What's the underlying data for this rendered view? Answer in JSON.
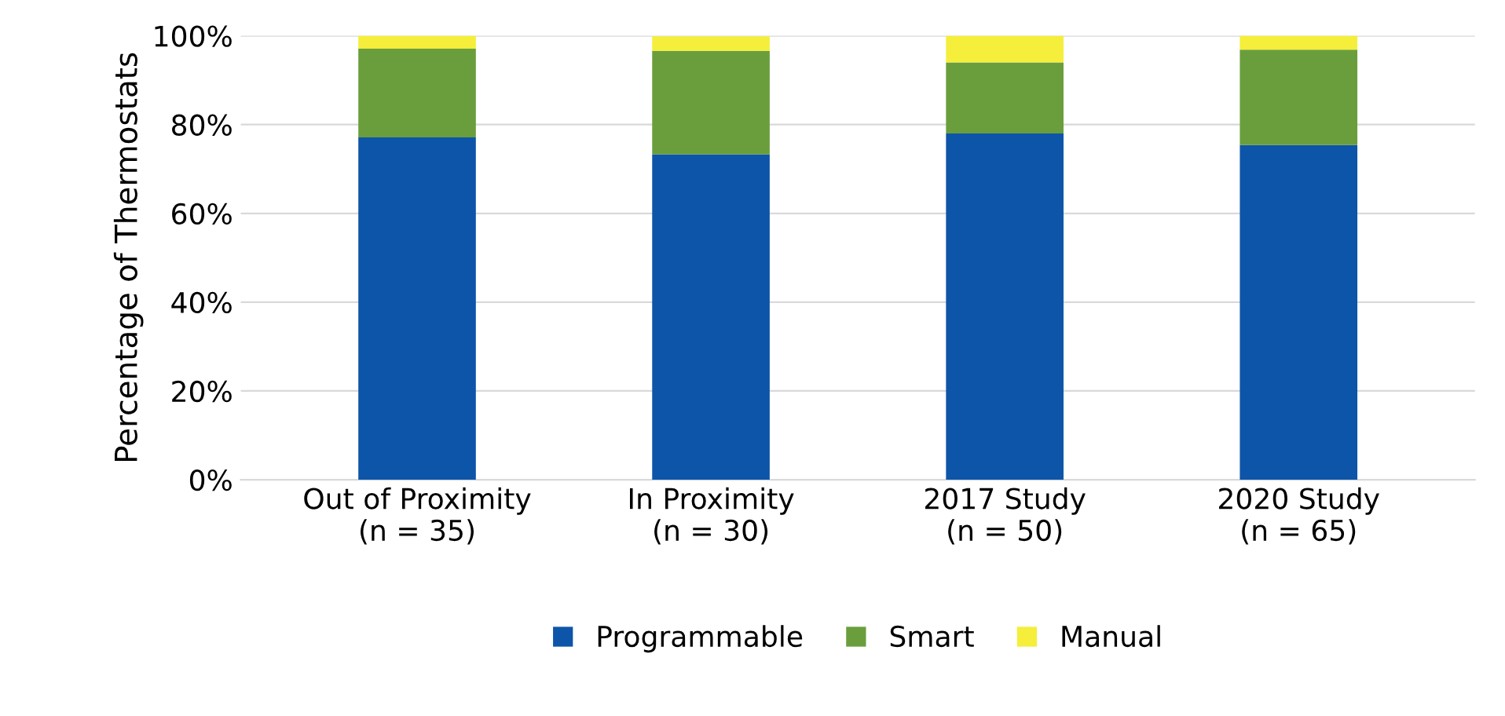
{
  "chart_data": {
    "type": "bar",
    "stacked": true,
    "ylabel": "Percentage of Thermostats",
    "categories": [
      "Out of Proximity\n(n = 35)",
      "In Proximity\n(n = 30)",
      "2017 Study\n(n = 50)",
      "2020 Study\n(n = 65)"
    ],
    "series": [
      {
        "name": "Programmable",
        "color": "#0d55a8",
        "values": [
          77.1,
          73.3,
          78,
          75.4
        ]
      },
      {
        "name": "Smart",
        "color": "#6a9e3c",
        "values": [
          20,
          23.3,
          16,
          21.5
        ]
      },
      {
        "name": "Manual",
        "color": "#f5ee3a",
        "values": [
          2.9,
          3.3,
          6,
          3.1
        ]
      }
    ],
    "ylim": [
      0,
      100
    ],
    "yticks": [
      {
        "value": 0,
        "label": "0%"
      },
      {
        "value": 20,
        "label": "20%"
      },
      {
        "value": 40,
        "label": "40%"
      },
      {
        "value": 60,
        "label": "60%"
      },
      {
        "value": 80,
        "label": "80%"
      },
      {
        "value": 100,
        "label": "100%"
      }
    ],
    "grid": "y",
    "legend": "bottom"
  }
}
